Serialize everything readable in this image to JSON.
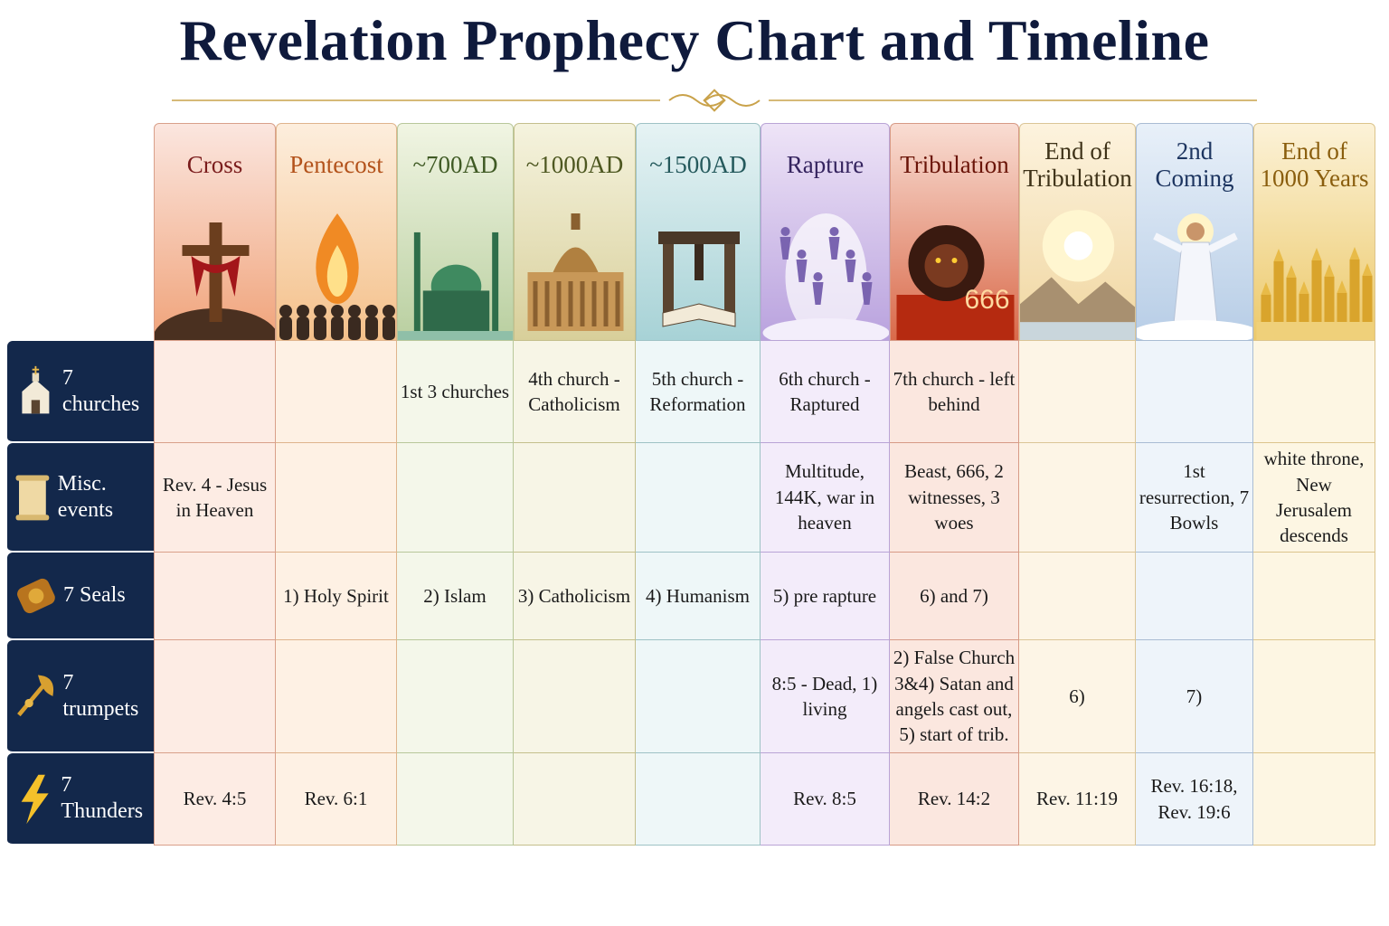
{
  "header": {
    "title": "Revelation Prophecy Chart and Timeline"
  },
  "table": {
    "columns": [
      {
        "label": "Cross"
      },
      {
        "label": "Pentecost"
      },
      {
        "label": "~700AD"
      },
      {
        "label": "~1000AD"
      },
      {
        "label": "~1500AD"
      },
      {
        "label": "Rapture"
      },
      {
        "label": "Tribulation",
        "image_text": "666"
      },
      {
        "label": "End of Tribulation"
      },
      {
        "label": "2nd Coming"
      },
      {
        "label": "End of 1000 Years"
      }
    ],
    "rows": [
      {
        "label": "7 churches",
        "cells": [
          null,
          null,
          "1st 3 churches",
          "4th church - Catholicism",
          "5th church - Reformation",
          "6th church - Raptured",
          "7th church - left behind",
          null,
          null,
          null
        ]
      },
      {
        "label": "Misc. events",
        "cells": [
          "Rev. 4 - Jesus in Heaven",
          null,
          null,
          null,
          null,
          "Multitude, 144K, war in heaven",
          "Beast, 666, 2 witnesses, 3 woes",
          null,
          "1st resurrection, 7 Bowls",
          "white throne, New Jerusalem descends"
        ]
      },
      {
        "label": "7 Seals",
        "cells": [
          null,
          "1) Holy Spirit",
          "2) Islam",
          "3) Catholicism",
          "4) Humanism",
          "5) pre rapture",
          "6) and 7)",
          null,
          null,
          null
        ]
      },
      {
        "label": "7 trumpets",
        "cells": [
          null,
          null,
          null,
          null,
          null,
          "8:5 - Dead, 1) living",
          "2) False Church 3&4) Satan and angels cast out, 5) start of trib.",
          "6)",
          "7)",
          null
        ]
      },
      {
        "label": "7 Thunders",
        "cells": [
          "Rev. 4:5",
          "Rev. 6:1",
          null,
          null,
          null,
          "Rev. 8:5",
          "Rev. 14:2",
          "Rev. 11:19",
          "Rev. 16:18, Rev. 19:6",
          null
        ]
      }
    ]
  }
}
